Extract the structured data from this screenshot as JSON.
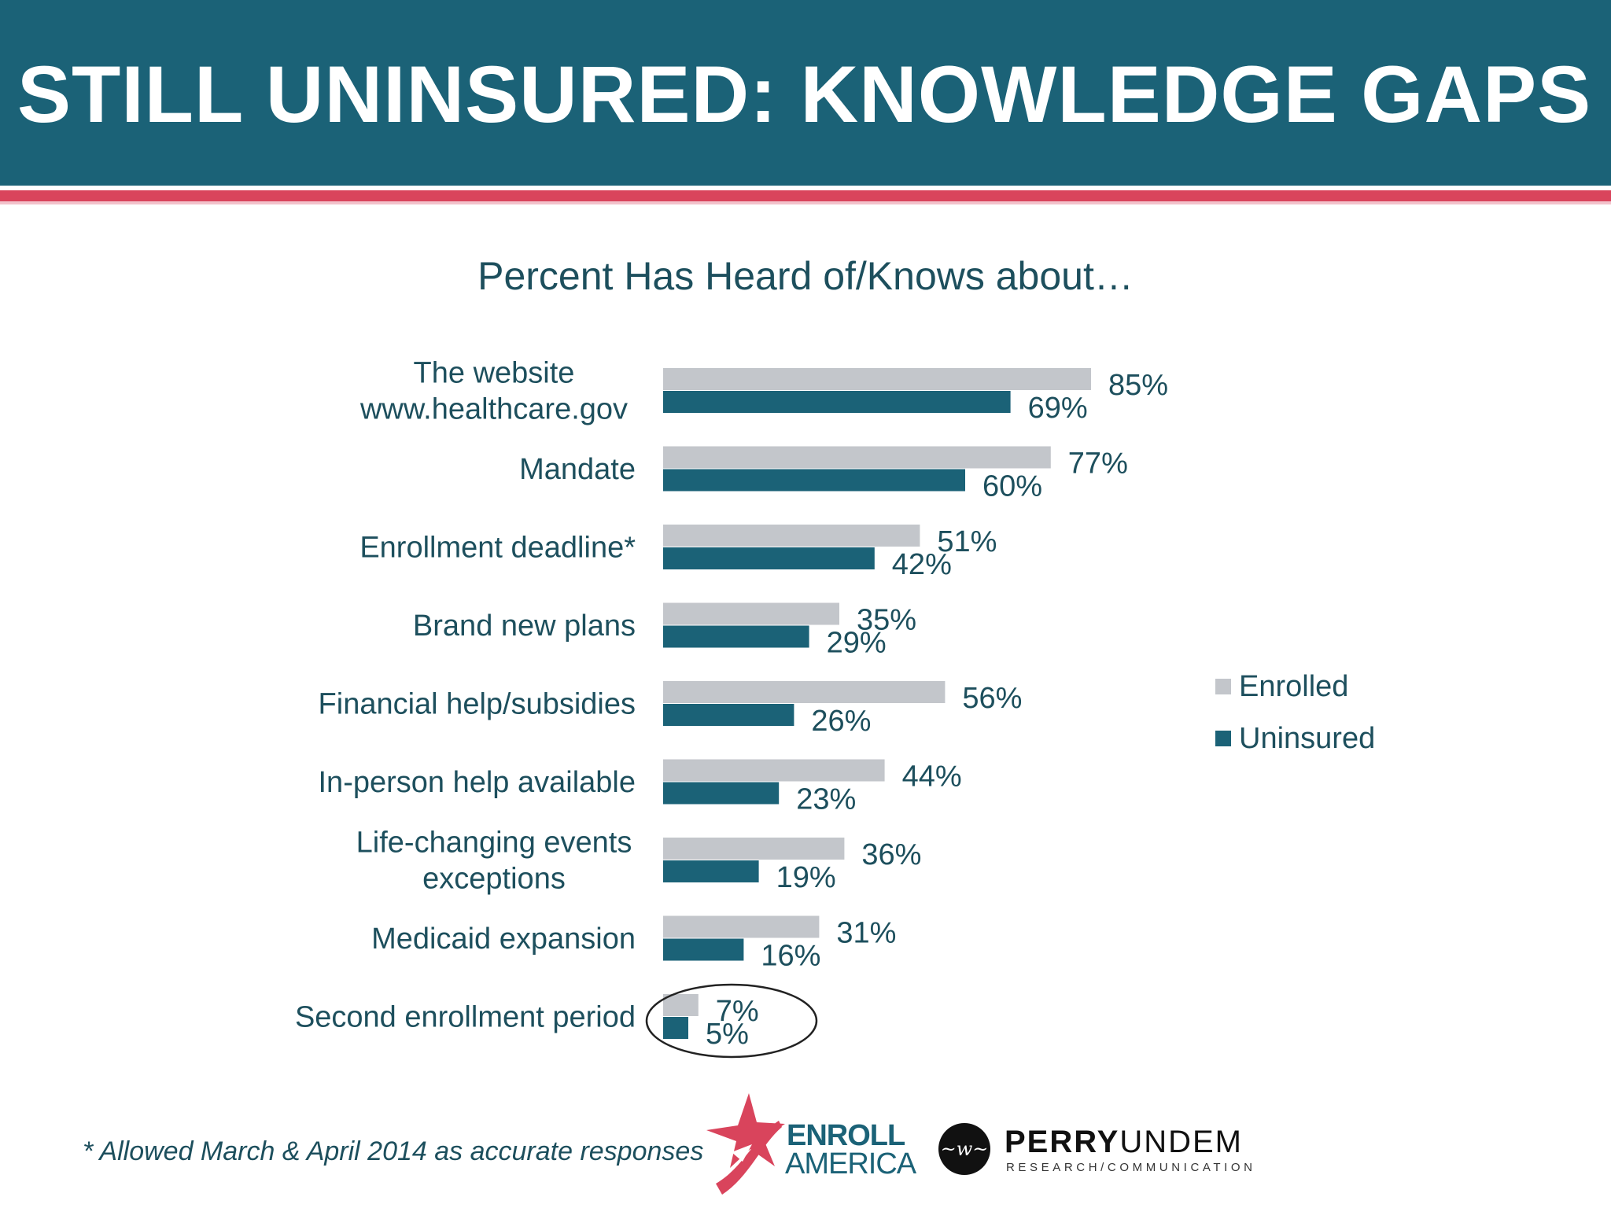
{
  "header": {
    "title": "STILL UNINSURED: KNOWLEDGE GAPS"
  },
  "colors": {
    "header_bg": "#1b6277",
    "stripe_red": "#d9445c",
    "enrolled": "#c3c6cb",
    "uninsured": "#1b6277",
    "text": "#1d4f5d"
  },
  "chart_data": {
    "type": "bar",
    "orientation": "horizontal",
    "title": "Percent Has Heard of/Knows about…",
    "xlim": [
      0,
      100
    ],
    "legend_position": "right",
    "categories": [
      [
        "The website",
        "www.healthcare.gov"
      ],
      [
        "Mandate"
      ],
      [
        "Enrollment deadline*"
      ],
      [
        "Brand new plans"
      ],
      [
        "Financial help/subsidies"
      ],
      [
        "In-person help available"
      ],
      [
        "Life-changing events",
        "exceptions"
      ],
      [
        "Medicaid expansion"
      ],
      [
        "Second enrollment period"
      ]
    ],
    "series": [
      {
        "name": "Enrolled",
        "color": "#c3c6cb",
        "values": [
          85,
          77,
          51,
          35,
          56,
          44,
          36,
          31,
          7
        ],
        "labels": [
          "85%",
          "77%",
          "51%",
          "35%",
          "56%",
          "44%",
          "36%",
          "31%",
          "7%"
        ]
      },
      {
        "name": "Uninsured",
        "color": "#1b6277",
        "values": [
          69,
          60,
          42,
          29,
          26,
          23,
          19,
          16,
          5
        ],
        "labels": [
          "69%",
          "60%",
          "42%",
          "29%",
          "26%",
          "23%",
          "19%",
          "16%",
          "5%"
        ]
      }
    ],
    "highlight_circle_category": "Second enrollment period"
  },
  "footnote": "* Allowed March & April 2014 as accurate responses",
  "logos": {
    "enroll_line1": "ENROLL",
    "enroll_line2": "AMERICA",
    "perry_bold": "PERRY",
    "perry_light": "UNDEM",
    "perry_sub": "RESEARCH/COMMUNICATION"
  }
}
